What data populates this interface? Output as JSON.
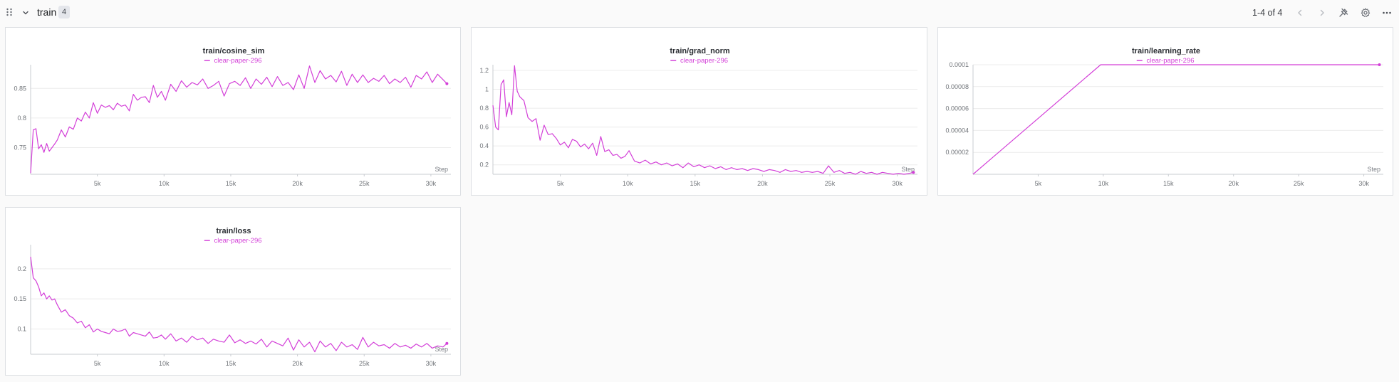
{
  "section": {
    "title": "train",
    "count": "4",
    "pager": "1-4 of 4",
    "icons": [
      "drag-handle-icon",
      "chevron-down-icon",
      "chevron-left-icon",
      "chevron-right-icon",
      "pin-icon",
      "gear-icon",
      "more-icon"
    ]
  },
  "colors": {
    "series": "#d33fd8",
    "grid": "#ececec",
    "axis": "#c9ccd1"
  },
  "panels": [
    {
      "title": "train/cosine_sim",
      "legend": "clear-paper-296",
      "x_axis_name": "Step",
      "y_ticks": [
        "0.75",
        "0.8",
        "0.85"
      ],
      "x_ticks": [
        "5k",
        "10k",
        "15k",
        "20k",
        "25k",
        "30k"
      ]
    },
    {
      "title": "train/grad_norm",
      "legend": "clear-paper-296",
      "x_axis_name": "Step",
      "y_ticks": [
        "0.2",
        "0.4",
        "0.6",
        "0.8",
        "1",
        "1.2"
      ],
      "x_ticks": [
        "5k",
        "10k",
        "15k",
        "20k",
        "25k",
        "30k"
      ]
    },
    {
      "title": "train/learning_rate",
      "legend": "clear-paper-296",
      "x_axis_name": "Step",
      "y_ticks": [
        "0.00002",
        "0.00004",
        "0.00006",
        "0.00008",
        "0.0001"
      ],
      "x_ticks": [
        "5k",
        "10k",
        "15k",
        "20k",
        "25k",
        "30k"
      ]
    },
    {
      "title": "train/loss",
      "legend": "clear-paper-296",
      "x_axis_name": "Step",
      "y_ticks": [
        "0.1",
        "0.15",
        "0.2"
      ],
      "x_ticks": [
        "5k",
        "10k",
        "15k",
        "20k",
        "25k",
        "30k"
      ]
    }
  ],
  "chart_data": [
    {
      "type": "line",
      "title": "train/cosine_sim",
      "xlabel": "Step",
      "ylabel": "",
      "xlim": [
        0,
        31500
      ],
      "ylim": [
        0.705,
        0.89
      ],
      "x_ticks": [
        5000,
        10000,
        15000,
        20000,
        25000,
        30000
      ],
      "y_ticks": [
        0.75,
        0.8,
        0.85
      ],
      "grid": true,
      "legend_position": "top-center",
      "series": [
        {
          "name": "clear-paper-296",
          "x": [
            0,
            200,
            400,
            600,
            800,
            1000,
            1200,
            1400,
            1600,
            1800,
            2000,
            2300,
            2600,
            2900,
            3200,
            3500,
            3800,
            4100,
            4400,
            4700,
            5000,
            5300,
            5600,
            5900,
            6200,
            6500,
            6800,
            7100,
            7400,
            7700,
            8000,
            8300,
            8600,
            8900,
            9200,
            9500,
            9800,
            10100,
            10500,
            10900,
            11300,
            11700,
            12100,
            12500,
            12900,
            13300,
            13700,
            14100,
            14500,
            14900,
            15300,
            15700,
            16100,
            16500,
            16900,
            17300,
            17700,
            18100,
            18500,
            18900,
            19300,
            19700,
            20100,
            20500,
            20900,
            21300,
            21700,
            22100,
            22500,
            22900,
            23300,
            23700,
            24100,
            24500,
            24900,
            25300,
            25700,
            26100,
            26500,
            26900,
            27300,
            27700,
            28100,
            28500,
            28900,
            29300,
            29700,
            30100,
            30500,
            30900,
            31200
          ],
          "y": [
            0.707,
            0.78,
            0.782,
            0.748,
            0.755,
            0.742,
            0.757,
            0.744,
            0.75,
            0.756,
            0.763,
            0.78,
            0.768,
            0.785,
            0.781,
            0.8,
            0.795,
            0.81,
            0.8,
            0.826,
            0.808,
            0.822,
            0.818,
            0.821,
            0.814,
            0.825,
            0.82,
            0.822,
            0.812,
            0.84,
            0.83,
            0.835,
            0.836,
            0.826,
            0.855,
            0.835,
            0.845,
            0.83,
            0.857,
            0.845,
            0.863,
            0.852,
            0.86,
            0.856,
            0.866,
            0.85,
            0.855,
            0.862,
            0.837,
            0.858,
            0.862,
            0.855,
            0.868,
            0.85,
            0.866,
            0.857,
            0.869,
            0.853,
            0.87,
            0.855,
            0.86,
            0.848,
            0.873,
            0.85,
            0.888,
            0.86,
            0.88,
            0.866,
            0.872,
            0.861,
            0.879,
            0.855,
            0.874,
            0.86,
            0.873,
            0.86,
            0.867,
            0.862,
            0.872,
            0.858,
            0.866,
            0.86,
            0.869,
            0.852,
            0.872,
            0.866,
            0.878,
            0.86,
            0.874,
            0.865,
            0.858
          ]
        }
      ]
    },
    {
      "type": "line",
      "title": "train/grad_norm",
      "xlabel": "Step",
      "ylabel": "",
      "xlim": [
        0,
        31500
      ],
      "ylim": [
        0.1,
        1.26
      ],
      "x_ticks": [
        5000,
        10000,
        15000,
        20000,
        25000,
        30000
      ],
      "y_ticks": [
        0.2,
        0.4,
        0.6,
        0.8,
        1,
        1.2
      ],
      "grid": true,
      "legend_position": "top-center",
      "series": [
        {
          "name": "clear-paper-296",
          "x": [
            0,
            200,
            400,
            600,
            800,
            1000,
            1200,
            1400,
            1600,
            1800,
            2000,
            2300,
            2600,
            2900,
            3200,
            3500,
            3800,
            4100,
            4400,
            4700,
            5000,
            5300,
            5600,
            5900,
            6200,
            6500,
            6800,
            7100,
            7400,
            7700,
            8000,
            8300,
            8600,
            8900,
            9200,
            9500,
            9800,
            10100,
            10500,
            10900,
            11300,
            11700,
            12100,
            12500,
            12900,
            13300,
            13700,
            14100,
            14500,
            14900,
            15300,
            15700,
            16100,
            16500,
            16900,
            17300,
            17700,
            18100,
            18500,
            18900,
            19300,
            19700,
            20100,
            20500,
            20900,
            21300,
            21700,
            22100,
            22500,
            22900,
            23300,
            23700,
            24100,
            24500,
            24900,
            25300,
            25700,
            26100,
            26500,
            26900,
            27300,
            27700,
            28100,
            28500,
            28900,
            29300,
            29700,
            30100,
            30500,
            30900,
            31200
          ],
          "y": [
            0.83,
            0.6,
            0.57,
            1.05,
            1.1,
            0.71,
            0.86,
            0.73,
            1.25,
            0.98,
            0.92,
            0.88,
            0.7,
            0.66,
            0.69,
            0.46,
            0.62,
            0.52,
            0.53,
            0.48,
            0.41,
            0.44,
            0.38,
            0.47,
            0.45,
            0.39,
            0.42,
            0.37,
            0.43,
            0.3,
            0.5,
            0.34,
            0.36,
            0.3,
            0.31,
            0.27,
            0.29,
            0.35,
            0.24,
            0.22,
            0.25,
            0.21,
            0.23,
            0.2,
            0.22,
            0.19,
            0.21,
            0.17,
            0.22,
            0.18,
            0.2,
            0.17,
            0.19,
            0.16,
            0.18,
            0.15,
            0.17,
            0.15,
            0.16,
            0.14,
            0.16,
            0.15,
            0.13,
            0.15,
            0.14,
            0.12,
            0.15,
            0.13,
            0.14,
            0.12,
            0.13,
            0.12,
            0.13,
            0.11,
            0.19,
            0.12,
            0.14,
            0.11,
            0.12,
            0.1,
            0.13,
            0.11,
            0.12,
            0.1,
            0.12,
            0.11,
            0.1,
            0.11,
            0.1,
            0.11,
            0.12
          ]
        }
      ]
    },
    {
      "type": "line",
      "title": "train/learning_rate",
      "xlabel": "Step",
      "ylabel": "",
      "xlim": [
        0,
        31500
      ],
      "ylim": [
        0,
        0.0001
      ],
      "x_ticks": [
        5000,
        10000,
        15000,
        20000,
        25000,
        30000
      ],
      "y_ticks": [
        2e-05,
        4e-05,
        6e-05,
        8e-05,
        0.0001
      ],
      "grid": true,
      "legend_position": "top-center",
      "series": [
        {
          "name": "clear-paper-296",
          "x": [
            0,
            9800,
            31200
          ],
          "y": [
            0,
            0.0001,
            0.0001
          ]
        }
      ]
    },
    {
      "type": "line",
      "title": "train/loss",
      "xlabel": "Step",
      "ylabel": "",
      "xlim": [
        0,
        31500
      ],
      "ylim": [
        0.058,
        0.24
      ],
      "x_ticks": [
        5000,
        10000,
        15000,
        20000,
        25000,
        30000
      ],
      "y_ticks": [
        0.1,
        0.15,
        0.2
      ],
      "grid": true,
      "legend_position": "top-center",
      "series": [
        {
          "name": "clear-paper-296",
          "x": [
            0,
            200,
            400,
            600,
            800,
            1000,
            1200,
            1400,
            1600,
            1800,
            2000,
            2300,
            2600,
            2900,
            3200,
            3500,
            3800,
            4100,
            4400,
            4700,
            5000,
            5300,
            5600,
            5900,
            6200,
            6500,
            6800,
            7100,
            7400,
            7700,
            8000,
            8300,
            8600,
            8900,
            9200,
            9500,
            9800,
            10100,
            10500,
            10900,
            11300,
            11700,
            12100,
            12500,
            12900,
            13300,
            13700,
            14100,
            14500,
            14900,
            15300,
            15700,
            16100,
            16500,
            16900,
            17300,
            17700,
            18100,
            18500,
            18900,
            19300,
            19700,
            20100,
            20500,
            20900,
            21300,
            21700,
            22100,
            22500,
            22900,
            23300,
            23700,
            24100,
            24500,
            24900,
            25300,
            25700,
            26100,
            26500,
            26900,
            27300,
            27700,
            28100,
            28500,
            28900,
            29300,
            29700,
            30100,
            30500,
            30900,
            31200
          ],
          "y": [
            0.22,
            0.185,
            0.18,
            0.17,
            0.155,
            0.16,
            0.15,
            0.155,
            0.148,
            0.15,
            0.14,
            0.128,
            0.132,
            0.122,
            0.118,
            0.11,
            0.113,
            0.102,
            0.107,
            0.095,
            0.1,
            0.096,
            0.094,
            0.092,
            0.1,
            0.096,
            0.097,
            0.1,
            0.088,
            0.094,
            0.092,
            0.09,
            0.088,
            0.095,
            0.085,
            0.086,
            0.09,
            0.083,
            0.092,
            0.08,
            0.085,
            0.078,
            0.088,
            0.082,
            0.085,
            0.076,
            0.083,
            0.08,
            0.078,
            0.09,
            0.077,
            0.082,
            0.076,
            0.08,
            0.075,
            0.083,
            0.07,
            0.08,
            0.076,
            0.072,
            0.085,
            0.065,
            0.082,
            0.07,
            0.078,
            0.062,
            0.08,
            0.07,
            0.076,
            0.064,
            0.078,
            0.07,
            0.074,
            0.066,
            0.086,
            0.07,
            0.078,
            0.072,
            0.074,
            0.068,
            0.076,
            0.07,
            0.073,
            0.068,
            0.075,
            0.07,
            0.076,
            0.068,
            0.072,
            0.07,
            0.076
          ]
        }
      ]
    }
  ]
}
